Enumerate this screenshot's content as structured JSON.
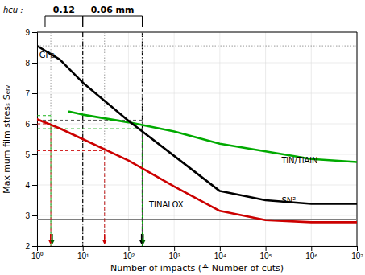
{
  "chart_data": {
    "type": "line",
    "x_label": "Number of impacts (≙ Number of cuts)",
    "y_label": "Maximum film stresₛ Sₑᵣᵥ",
    "xlim": [
      0,
      7
    ],
    "ylim": [
      2,
      9
    ],
    "xticks": [
      {
        "value": 0,
        "label": "10⁰"
      },
      {
        "value": 1,
        "label": "10¹"
      },
      {
        "value": 2,
        "label": "10²"
      },
      {
        "value": 3,
        "label": "10³"
      },
      {
        "value": 4,
        "label": "10⁴"
      },
      {
        "value": 5,
        "label": "10⁵"
      },
      {
        "value": 6,
        "label": "10⁶"
      },
      {
        "value": 7,
        "label": "10⁷"
      }
    ],
    "yticks": [
      2,
      3,
      4,
      5,
      6,
      7,
      8,
      9
    ],
    "grid": true,
    "series": [
      {
        "color": "#00aa00",
        "x": [
          0.7,
          1,
          2,
          3,
          4,
          5,
          6,
          7
        ],
        "values": [
          6.4,
          6.3,
          6.05,
          5.75,
          5.35,
          5.1,
          4.85,
          4.75
        ]
      },
      {
        "color": "#000000",
        "x": [
          0,
          0.5,
          1,
          2,
          3,
          4,
          5,
          6,
          7
        ],
        "values": [
          8.55,
          8.1,
          7.35,
          6.1,
          4.95,
          3.8,
          3.5,
          3.38,
          3.38
        ]
      },
      {
        "color": "#cc0000",
        "x": [
          0,
          0.5,
          1,
          2,
          3,
          4,
          5,
          6,
          7
        ],
        "values": [
          6.15,
          5.85,
          5.5,
          4.8,
          3.95,
          3.15,
          2.85,
          2.78,
          2.78
        ]
      }
    ],
    "reference_lines": [
      {
        "axis": "y",
        "value": 2.88,
        "color": "gray",
        "line_style": "solid"
      },
      {
        "axis": "y",
        "value": 8.55,
        "color": "gray",
        "line_style": "dotted"
      },
      {
        "axis": "x",
        "value": 1.0,
        "color": "black",
        "line_style": "dashdot"
      },
      {
        "axis": "x",
        "value": 2.301,
        "color": "black",
        "line_style": "dashdot"
      },
      {
        "axis": "x",
        "value": 0.301,
        "color": "gray",
        "line_style": "dotted"
      },
      {
        "axis": "x",
        "value": 1.477,
        "color": "gray",
        "line_style": "dotted"
      },
      {
        "axis": "x",
        "value": 2.301,
        "color": "gray",
        "line_style": "dotted"
      }
    ],
    "guides": [
      {
        "x": 0.301,
        "y": 6.0,
        "color": "#cc0000"
      },
      {
        "x": 0.301,
        "y": 6.27,
        "color": "#00aa00"
      },
      {
        "x": 1.477,
        "y": 5.12,
        "color": "#cc0000"
      },
      {
        "x": 2.301,
        "y": 5.84,
        "color": "#00aa00"
      },
      {
        "x": 2.301,
        "y": 6.12,
        "color": "#444444"
      }
    ],
    "arrows": [
      {
        "x": 0.295,
        "color": "#cc0000"
      },
      {
        "x": 0.335,
        "color": "#006600"
      },
      {
        "x": 1.477,
        "color": "#cc0000"
      },
      {
        "x": 2.285,
        "color": "#000000"
      },
      {
        "x": 2.325,
        "color": "#006600"
      }
    ],
    "annotations": [
      {
        "text": "TiN/TiAlN",
        "x": 5.35,
        "y": 4.78
      },
      {
        "text": "SN²",
        "x": 5.35,
        "y": 3.48
      },
      {
        "text": "TINALOX",
        "x": 2.45,
        "y": 3.35
      },
      {
        "text": "GPa",
        "x": 0.05,
        "y": 8.25
      }
    ],
    "brackets_title": "hcu :",
    "brackets": [
      {
        "x1": 0.176,
        "x2": 1.0,
        "label": "0.12"
      },
      {
        "x1": 1.0,
        "x2": 2.301,
        "label": "0.06 mm"
      }
    ]
  }
}
